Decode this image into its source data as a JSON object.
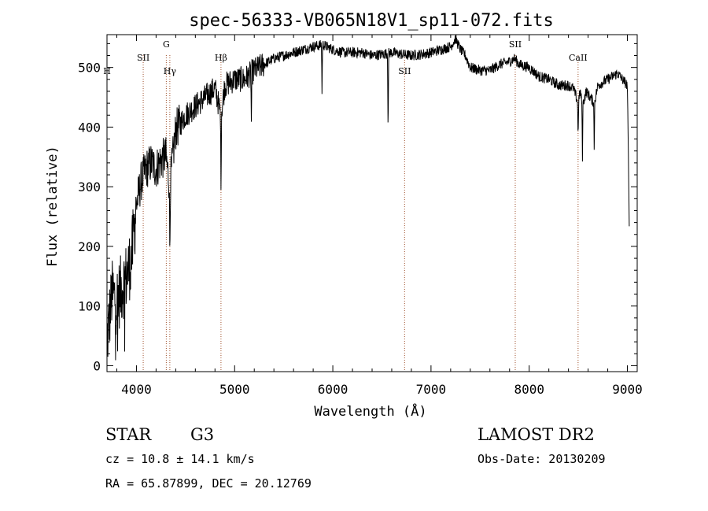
{
  "chart_data": {
    "type": "line",
    "title": "spec-56333-VB065N18V1_sp11-072.fits",
    "xlabel": "Wavelength (Å)",
    "ylabel": "Flux (relative)",
    "xlim": [
      3700,
      9100
    ],
    "ylim": [
      -10,
      555
    ],
    "xticks": [
      4000,
      5000,
      6000,
      7000,
      8000,
      9000
    ],
    "yticks": [
      0,
      100,
      200,
      300,
      400,
      500
    ],
    "grid": false,
    "spectrum_anchor_points": [
      [
        3700,
        40
      ],
      [
        3750,
        120
      ],
      [
        3800,
        110
      ],
      [
        3850,
        130
      ],
      [
        3900,
        150
      ],
      [
        3950,
        180
      ],
      [
        4000,
        270
      ],
      [
        4050,
        310
      ],
      [
        4100,
        330
      ],
      [
        4150,
        340
      ],
      [
        4200,
        330
      ],
      [
        4250,
        345
      ],
      [
        4300,
        350
      ],
      [
        4340,
        300
      ],
      [
        4400,
        395
      ],
      [
        4500,
        420
      ],
      [
        4600,
        435
      ],
      [
        4700,
        450
      ],
      [
        4800,
        465
      ],
      [
        4861,
        420
      ],
      [
        4900,
        470
      ],
      [
        5000,
        480
      ],
      [
        5100,
        480
      ],
      [
        5200,
        495
      ],
      [
        5300,
        505
      ],
      [
        5400,
        515
      ],
      [
        5500,
        520
      ],
      [
        5600,
        525
      ],
      [
        5700,
        530
      ],
      [
        5800,
        535
      ],
      [
        5900,
        538
      ],
      [
        6000,
        530
      ],
      [
        6100,
        525
      ],
      [
        6200,
        525
      ],
      [
        6300,
        525
      ],
      [
        6400,
        520
      ],
      [
        6500,
        522
      ],
      [
        6600,
        525
      ],
      [
        6700,
        522
      ],
      [
        6800,
        520
      ],
      [
        6900,
        522
      ],
      [
        7000,
        525
      ],
      [
        7100,
        530
      ],
      [
        7200,
        535
      ],
      [
        7250,
        548
      ],
      [
        7300,
        530
      ],
      [
        7350,
        520
      ],
      [
        7400,
        500
      ],
      [
        7500,
        495
      ],
      [
        7600,
        495
      ],
      [
        7700,
        505
      ],
      [
        7800,
        510
      ],
      [
        7850,
        515
      ],
      [
        7900,
        505
      ],
      [
        8000,
        500
      ],
      [
        8100,
        485
      ],
      [
        8200,
        480
      ],
      [
        8300,
        470
      ],
      [
        8400,
        470
      ],
      [
        8450,
        465
      ],
      [
        8498,
        440
      ],
      [
        8520,
        460
      ],
      [
        8542,
        435
      ],
      [
        8580,
        460
      ],
      [
        8662,
        440
      ],
      [
        8700,
        470
      ],
      [
        8800,
        480
      ],
      [
        8900,
        490
      ],
      [
        8950,
        480
      ],
      [
        9000,
        470
      ],
      [
        9020,
        230
      ]
    ],
    "absorption_features": [
      {
        "x": 4340,
        "depth": 120
      },
      {
        "x": 4861,
        "depth": 110
      },
      {
        "x": 5170,
        "depth": 80
      },
      {
        "x": 5890,
        "depth": 80
      },
      {
        "x": 6563,
        "depth": 130
      },
      {
        "x": 8498,
        "depth": 60
      },
      {
        "x": 8542,
        "depth": 90
      },
      {
        "x": 8662,
        "depth": 80
      }
    ],
    "lines": [
      {
        "label": "H",
        "x": 3700,
        "pos": "low"
      },
      {
        "label": "SII",
        "x": 4069,
        "pos": "mid"
      },
      {
        "label": "G",
        "x": 4304,
        "pos": "high"
      },
      {
        "label": "Hγ",
        "x": 4340,
        "pos": "low"
      },
      {
        "label": "Hβ",
        "x": 4861,
        "pos": "mid"
      },
      {
        "label": "SII",
        "x": 6731,
        "pos": "low"
      },
      {
        "label": "SII",
        "x": 7858,
        "pos": "high"
      },
      {
        "label": "CaII",
        "x": 8498,
        "pos": "mid"
      }
    ],
    "line_color": "#000000",
    "marker_color": "#a0522d"
  },
  "info": {
    "class": "STAR",
    "subclass": "G3",
    "cz": "cz = 10.8 ± 14.1 km/s",
    "coords": "RA =  65.87899, DEC =  20.12769",
    "survey": "LAMOST DR2",
    "obs_date": "Obs-Date: 20130209"
  }
}
